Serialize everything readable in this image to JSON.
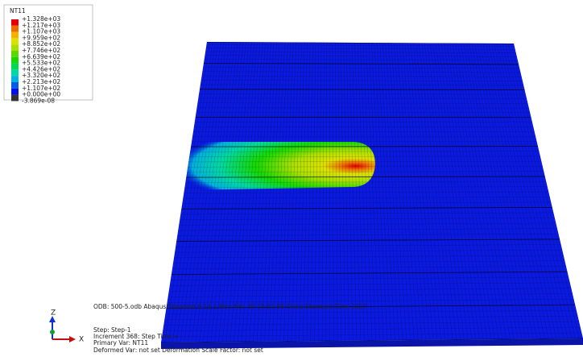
{
  "legend": {
    "title": "NT11",
    "labels": [
      "+1.328e+03",
      "+1.217e+03",
      "+1.107e+03",
      "+9.959e+02",
      "+8.852e+02",
      "+7.746e+02",
      "+6.639e+02",
      "+5.533e+02",
      "+4.426e+02",
      "+3.320e+02",
      "+2.213e+02",
      "+1.107e+02",
      "+0.000e+00",
      "-3.869e-08"
    ],
    "colors": [
      "#e60000",
      "#f06a00",
      "#f7b000",
      "#dde000",
      "#a8e000",
      "#5cd800",
      "#17d900",
      "#00d957",
      "#00d9a4",
      "#00b0e0",
      "#005ee6",
      "#0010e6",
      "#333333"
    ]
  },
  "info": {
    "odb": "ODB: 500-5.odb    Abaqus/Standard 6.14-1    Mon Nov 30 10:51:58 China Standard Time 2017",
    "step": "Step: Step-1",
    "increment": "Increment    368: Step Time =",
    "primary": "Primary Var: NT11",
    "deformed": "Deformed Var: not set   Deformation Scale Factor: not set"
  },
  "triad": {
    "z": "Z",
    "x": "X"
  }
}
